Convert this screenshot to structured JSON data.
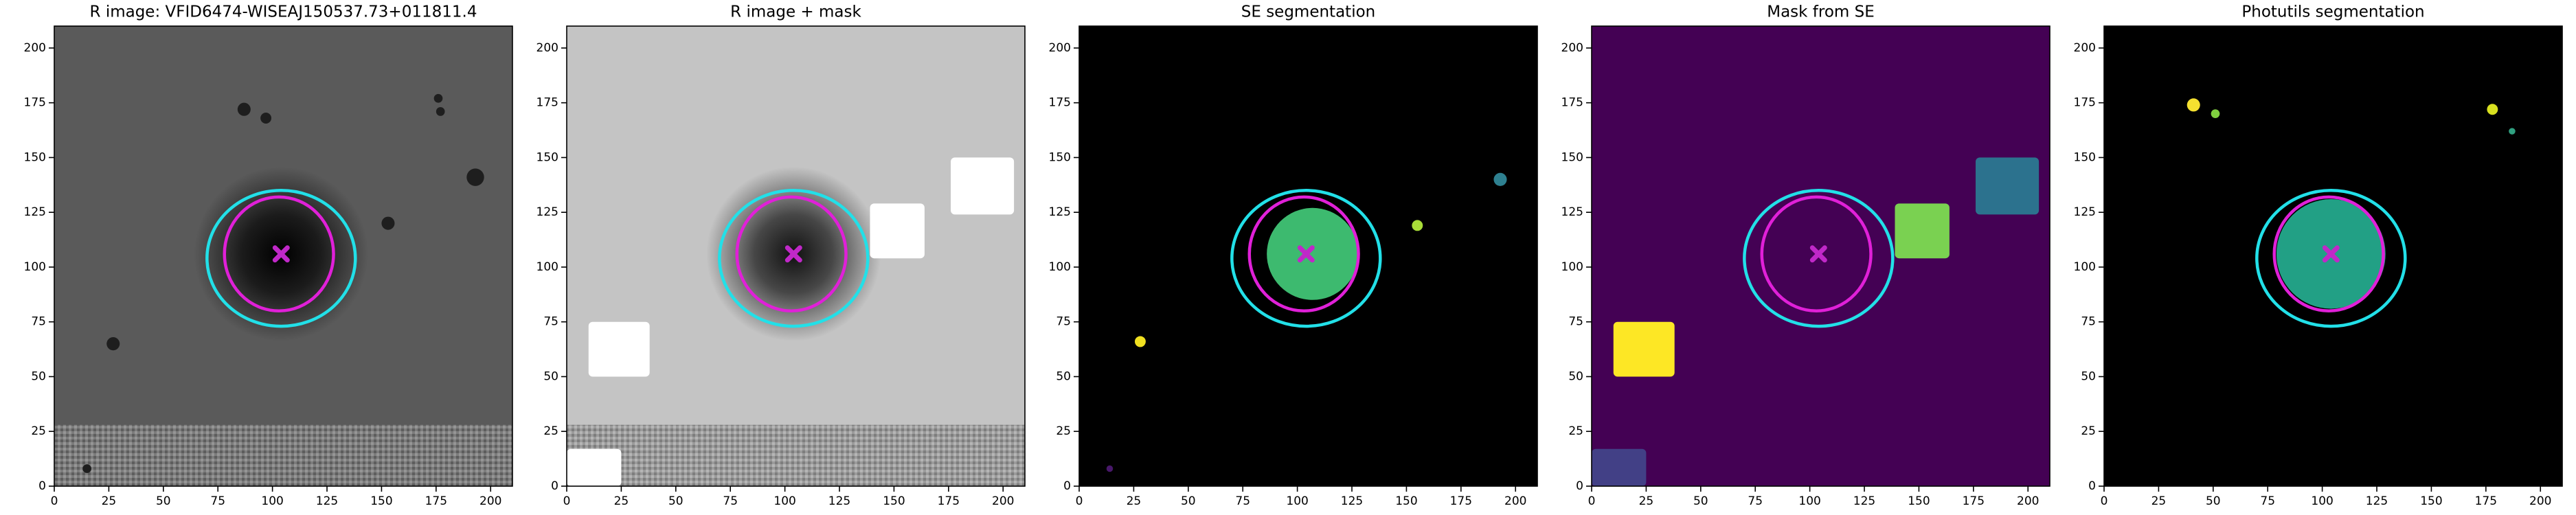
{
  "chart_data": [
    {
      "type": "image",
      "title": "R image: VFID6474-WISEAJ150537.73+011811.4",
      "background": "#5a5a5a",
      "glow": "#000000",
      "xlim": [
        0,
        210
      ],
      "ylim": [
        0,
        210
      ],
      "xticks": [
        0,
        25,
        50,
        75,
        100,
        125,
        150,
        175,
        200
      ],
      "yticks": [
        0,
        25,
        50,
        75,
        100,
        125,
        150,
        175,
        200
      ],
      "noise_band": [
        0,
        28
      ],
      "rects": [],
      "spots": [
        {
          "x": 87,
          "y": 172,
          "r": 3,
          "color": "#1e1e1e"
        },
        {
          "x": 97,
          "y": 168,
          "r": 2.5,
          "color": "#1e1e1e"
        },
        {
          "x": 177,
          "y": 171,
          "r": 2,
          "color": "#1e1e1e"
        },
        {
          "x": 176,
          "y": 177,
          "r": 2,
          "color": "#1e1e1e"
        },
        {
          "x": 193,
          "y": 141,
          "r": 4,
          "color": "#1e1e1e"
        },
        {
          "x": 153,
          "y": 120,
          "r": 3,
          "color": "#1e1e1e"
        },
        {
          "x": 27,
          "y": 65,
          "r": 3,
          "color": "#1e1e1e"
        },
        {
          "x": 15,
          "y": 8,
          "r": 2,
          "color": "#1e1e1e"
        }
      ],
      "ellipses": [
        {
          "cx": 104,
          "cy": 104,
          "rx": 34,
          "ry": 31,
          "color": "#22e0e8"
        },
        {
          "cx": 103,
          "cy": 106,
          "rx": 25,
          "ry": 26,
          "color": "#e020d8"
        }
      ],
      "marker": {
        "x": 104,
        "y": 106,
        "color": "#c028c8"
      }
    },
    {
      "type": "image",
      "title": "R image + mask",
      "background": "#c4c4c4",
      "glow": "#111111",
      "xlim": [
        0,
        210
      ],
      "ylim": [
        0,
        210
      ],
      "xticks": [
        0,
        25,
        50,
        75,
        100,
        125,
        150,
        175,
        200
      ],
      "yticks": [
        0,
        25,
        50,
        75,
        100,
        125,
        150,
        175,
        200
      ],
      "noise_band": [
        0,
        28
      ],
      "rects": [
        {
          "x": [
            10,
            38
          ],
          "y": [
            50,
            75
          ],
          "color": "#ffffff"
        },
        {
          "x": [
            0,
            25
          ],
          "y": [
            0,
            17
          ],
          "color": "#ffffff"
        },
        {
          "x": [
            139,
            164
          ],
          "y": [
            104,
            129
          ],
          "color": "#ffffff"
        },
        {
          "x": [
            176,
            205
          ],
          "y": [
            124,
            150
          ],
          "color": "#ffffff"
        }
      ],
      "spots": [],
      "ellipses": [
        {
          "cx": 104,
          "cy": 104,
          "rx": 34,
          "ry": 31,
          "color": "#22e0e8"
        },
        {
          "cx": 103,
          "cy": 106,
          "rx": 25,
          "ry": 26,
          "color": "#e020d8"
        }
      ],
      "marker": {
        "x": 104,
        "y": 106,
        "color": "#c028c8"
      }
    },
    {
      "type": "image",
      "title": "SE segmentation",
      "background": "#000000",
      "xlim": [
        0,
        210
      ],
      "ylim": [
        0,
        210
      ],
      "xticks": [
        0,
        25,
        50,
        75,
        100,
        125,
        150,
        175,
        200
      ],
      "yticks": [
        0,
        25,
        50,
        75,
        100,
        125,
        150,
        175,
        200
      ],
      "rects": [],
      "spots": [
        {
          "x": 107,
          "y": 106,
          "r": 21,
          "color": "#3dba6f"
        },
        {
          "x": 28,
          "y": 66,
          "r": 2.5,
          "color": "#f0e020"
        },
        {
          "x": 155,
          "y": 119,
          "r": 2.5,
          "color": "#a8dc38"
        },
        {
          "x": 193,
          "y": 140,
          "r": 3,
          "color": "#2e8090"
        },
        {
          "x": 14,
          "y": 8,
          "r": 1.5,
          "color": "#48186a"
        }
      ],
      "ellipses": [
        {
          "cx": 104,
          "cy": 104,
          "rx": 34,
          "ry": 31,
          "color": "#22e0e8"
        },
        {
          "cx": 103,
          "cy": 106,
          "rx": 25,
          "ry": 26,
          "color": "#e020d8"
        }
      ],
      "marker": {
        "x": 104,
        "y": 106,
        "color": "#c028c8"
      }
    },
    {
      "type": "image",
      "title": "Mask from SE",
      "background": "#440154",
      "xlim": [
        0,
        210
      ],
      "ylim": [
        0,
        210
      ],
      "xticks": [
        0,
        25,
        50,
        75,
        100,
        125,
        150,
        175,
        200
      ],
      "yticks": [
        0,
        25,
        50,
        75,
        100,
        125,
        150,
        175,
        200
      ],
      "rects": [
        {
          "x": [
            10,
            38
          ],
          "y": [
            50,
            75
          ],
          "color": "#fde725"
        },
        {
          "x": [
            0,
            25
          ],
          "y": [
            0,
            17
          ],
          "color": "#424086"
        },
        {
          "x": [
            139,
            164
          ],
          "y": [
            104,
            129
          ],
          "color": "#7ad151"
        },
        {
          "x": [
            176,
            205
          ],
          "y": [
            124,
            150
          ],
          "color": "#2c728e"
        }
      ],
      "spots": [],
      "ellipses": [
        {
          "cx": 104,
          "cy": 104,
          "rx": 34,
          "ry": 31,
          "color": "#22e0e8"
        },
        {
          "cx": 103,
          "cy": 106,
          "rx": 25,
          "ry": 26,
          "color": "#e020d8"
        }
      ],
      "marker": {
        "x": 104,
        "y": 106,
        "color": "#c028c8"
      }
    },
    {
      "type": "image",
      "title": "Photutils segmentation",
      "background": "#000000",
      "xlim": [
        0,
        210
      ],
      "ylim": [
        0,
        210
      ],
      "xticks": [
        0,
        25,
        50,
        75,
        100,
        125,
        150,
        175,
        200
      ],
      "yticks": [
        0,
        25,
        50,
        75,
        100,
        125,
        150,
        175,
        200
      ],
      "rects": [],
      "spots": [
        {
          "x": 104,
          "y": 106,
          "r": 25,
          "color": "#22a085"
        },
        {
          "x": 41,
          "y": 174,
          "r": 3,
          "color": "#f5e030"
        },
        {
          "x": 51,
          "y": 170,
          "r": 2,
          "color": "#80d040"
        },
        {
          "x": 178,
          "y": 172,
          "r": 2.5,
          "color": "#d8e020"
        },
        {
          "x": 187,
          "y": 162,
          "r": 1.5,
          "color": "#30a080"
        }
      ],
      "ellipses": [
        {
          "cx": 104,
          "cy": 104,
          "rx": 34,
          "ry": 31,
          "color": "#22e0e8"
        },
        {
          "cx": 103,
          "cy": 106,
          "rx": 25,
          "ry": 26,
          "color": "#e020d8"
        }
      ],
      "marker": {
        "x": 104,
        "y": 106,
        "color": "#c028c8"
      }
    }
  ]
}
